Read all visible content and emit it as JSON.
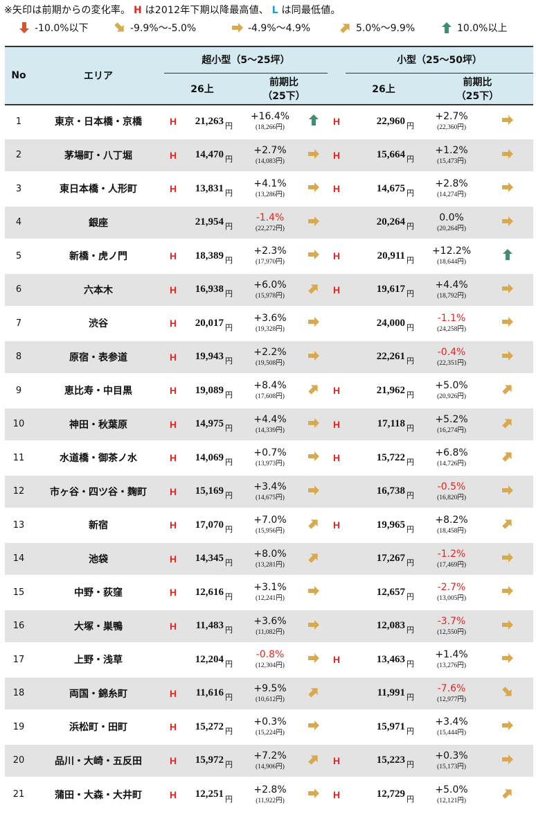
{
  "note": {
    "prefix": "※矢印は前期からの変化率。",
    "h_mark": "H",
    "h_text": "は2012年下期以降最高値、",
    "l_mark": "L",
    "l_text": "は同最低値。"
  },
  "legend": [
    {
      "icon": "down",
      "label": "-10.0%以下"
    },
    {
      "icon": "down-right",
      "label": "-9.9%〜-5.0%"
    },
    {
      "icon": "right",
      "label": "-4.9%〜4.9%"
    },
    {
      "icon": "up-right",
      "label": "5.0%〜9.9%"
    },
    {
      "icon": "up",
      "label": "10.0%以上"
    }
  ],
  "colors": {
    "header_bg": "#d4e9f0",
    "stripe": "#e3e3e3",
    "high_mark": "#e52420",
    "negative": "#e52420",
    "arrow_gold": "#d9a94f",
    "arrow_green": "#3f8f6e",
    "arrow_red": "#d9532a"
  },
  "header": {
    "no": "No",
    "area": "エリア",
    "group1": "超小型（5〜25坪）",
    "group2": "小型（25〜50坪）",
    "period": "26上",
    "change": "前期比",
    "change_sub": "（25下）"
  },
  "unit": "円",
  "rows": [
    {
      "no": "1",
      "area": "東京・日本橋・京橋",
      "s_h": "H",
      "s_val": "21,263",
      "s_pct": "+16.4%",
      "s_prev": "(18,266円)",
      "s_icon": "up",
      "m_h": "H",
      "m_val": "22,960",
      "m_pct": "+2.7%",
      "m_prev": "(22,360円)",
      "m_icon": "right"
    },
    {
      "no": "2",
      "area": "茅場町・八丁堀",
      "s_h": "H",
      "s_val": "14,470",
      "s_pct": "+2.7%",
      "s_prev": "(14,083円)",
      "s_icon": "right",
      "m_h": "H",
      "m_val": "15,664",
      "m_pct": "+1.2%",
      "m_prev": "(15,473円)",
      "m_icon": "right"
    },
    {
      "no": "3",
      "area": "東日本橋・人形町",
      "s_h": "H",
      "s_val": "13,831",
      "s_pct": "+4.1%",
      "s_prev": "(13,286円)",
      "s_icon": "right",
      "m_h": "H",
      "m_val": "14,675",
      "m_pct": "+2.8%",
      "m_prev": "(14,274円)",
      "m_icon": "right"
    },
    {
      "no": "4",
      "area": "銀座",
      "s_h": "",
      "s_val": "21,954",
      "s_pct": "-1.4%",
      "s_prev": "(22,272円)",
      "s_icon": "right",
      "m_h": "",
      "m_val": "20,264",
      "m_pct": "0.0%",
      "m_prev": "(20,264円)",
      "m_icon": "right"
    },
    {
      "no": "5",
      "area": "新橋・虎ノ門",
      "s_h": "H",
      "s_val": "18,389",
      "s_pct": "+2.3%",
      "s_prev": "(17,970円)",
      "s_icon": "right",
      "m_h": "H",
      "m_val": "20,911",
      "m_pct": "+12.2%",
      "m_prev": "(18,644円)",
      "m_icon": "up"
    },
    {
      "no": "6",
      "area": "六本木",
      "s_h": "H",
      "s_val": "16,938",
      "s_pct": "+6.0%",
      "s_prev": "(15,978円)",
      "s_icon": "up-right",
      "m_h": "H",
      "m_val": "19,617",
      "m_pct": "+4.4%",
      "m_prev": "(18,792円)",
      "m_icon": "right"
    },
    {
      "no": "7",
      "area": "渋谷",
      "s_h": "H",
      "s_val": "20,017",
      "s_pct": "+3.6%",
      "s_prev": "(19,328円)",
      "s_icon": "right",
      "m_h": "",
      "m_val": "24,000",
      "m_pct": "-1.1%",
      "m_prev": "(24,258円)",
      "m_icon": "right"
    },
    {
      "no": "8",
      "area": "原宿・表参道",
      "s_h": "H",
      "s_val": "19,943",
      "s_pct": "+2.2%",
      "s_prev": "(19,508円)",
      "s_icon": "right",
      "m_h": "",
      "m_val": "22,261",
      "m_pct": "-0.4%",
      "m_prev": "(22,351円)",
      "m_icon": "right"
    },
    {
      "no": "9",
      "area": "恵比寿・中目黒",
      "s_h": "H",
      "s_val": "19,089",
      "s_pct": "+8.4%",
      "s_prev": "(17,608円)",
      "s_icon": "up-right",
      "m_h": "H",
      "m_val": "21,962",
      "m_pct": "+5.0%",
      "m_prev": "(20,926円)",
      "m_icon": "up-right"
    },
    {
      "no": "10",
      "area": "神田・秋葉原",
      "s_h": "H",
      "s_val": "14,975",
      "s_pct": "+4.4%",
      "s_prev": "(14,339円)",
      "s_icon": "right",
      "m_h": "H",
      "m_val": "17,118",
      "m_pct": "+5.2%",
      "m_prev": "(16,274円)",
      "m_icon": "up-right"
    },
    {
      "no": "11",
      "area": "水道橋・御茶ノ水",
      "s_h": "H",
      "s_val": "14,069",
      "s_pct": "+0.7%",
      "s_prev": "(13,973円)",
      "s_icon": "right",
      "m_h": "H",
      "m_val": "15,722",
      "m_pct": "+6.8%",
      "m_prev": "(14,726円)",
      "m_icon": "up-right"
    },
    {
      "no": "12",
      "area": "市ヶ谷・四ツ谷・麹町",
      "s_h": "H",
      "s_val": "15,169",
      "s_pct": "+3.4%",
      "s_prev": "(14,675円)",
      "s_icon": "right",
      "m_h": "",
      "m_val": "16,738",
      "m_pct": "-0.5%",
      "m_prev": "(16,820円)",
      "m_icon": "right"
    },
    {
      "no": "13",
      "area": "新宿",
      "s_h": "H",
      "s_val": "17,070",
      "s_pct": "+7.0%",
      "s_prev": "(15,956円)",
      "s_icon": "up-right",
      "m_h": "H",
      "m_val": "19,965",
      "m_pct": "+8.2%",
      "m_prev": "(18,458円)",
      "m_icon": "up-right"
    },
    {
      "no": "14",
      "area": "池袋",
      "s_h": "H",
      "s_val": "14,345",
      "s_pct": "+8.0%",
      "s_prev": "(13,281円)",
      "s_icon": "up-right",
      "m_h": "",
      "m_val": "17,267",
      "m_pct": "-1.2%",
      "m_prev": "(17,469円)",
      "m_icon": "right"
    },
    {
      "no": "15",
      "area": "中野・荻窪",
      "s_h": "H",
      "s_val": "12,616",
      "s_pct": "+3.1%",
      "s_prev": "(12,241円)",
      "s_icon": "right",
      "m_h": "",
      "m_val": "12,657",
      "m_pct": "-2.7%",
      "m_prev": "(13,005円)",
      "m_icon": "right"
    },
    {
      "no": "16",
      "area": "大塚・巣鴨",
      "s_h": "H",
      "s_val": "11,483",
      "s_pct": "+3.6%",
      "s_prev": "(11,082円)",
      "s_icon": "right",
      "m_h": "",
      "m_val": "12,083",
      "m_pct": "-3.7%",
      "m_prev": "(12,550円)",
      "m_icon": "right"
    },
    {
      "no": "17",
      "area": "上野・浅草",
      "s_h": "",
      "s_val": "12,204",
      "s_pct": "-0.8%",
      "s_prev": "(12,304円)",
      "s_icon": "right",
      "m_h": "H",
      "m_val": "13,463",
      "m_pct": "+1.4%",
      "m_prev": "(13,276円)",
      "m_icon": "right"
    },
    {
      "no": "18",
      "area": "両国・錦糸町",
      "s_h": "H",
      "s_val": "11,616",
      "s_pct": "+9.5%",
      "s_prev": "(10,612円)",
      "s_icon": "up-right",
      "m_h": "",
      "m_val": "11,991",
      "m_pct": "-7.6%",
      "m_prev": "(12,977円)",
      "m_icon": "down-right"
    },
    {
      "no": "19",
      "area": "浜松町・田町",
      "s_h": "H",
      "s_val": "15,272",
      "s_pct": "+0.3%",
      "s_prev": "(15,224円)",
      "s_icon": "right",
      "m_h": "",
      "m_val": "15,971",
      "m_pct": "+3.4%",
      "m_prev": "(15,444円)",
      "m_icon": "right"
    },
    {
      "no": "20",
      "area": "品川・大崎・五反田",
      "s_h": "H",
      "s_val": "15,972",
      "s_pct": "+7.2%",
      "s_prev": "(14,906円)",
      "s_icon": "up-right",
      "m_h": "H",
      "m_val": "15,223",
      "m_pct": "+0.3%",
      "m_prev": "(15,173円)",
      "m_icon": "right"
    },
    {
      "no": "21",
      "area": "蒲田・大森・大井町",
      "s_h": "H",
      "s_val": "12,251",
      "s_pct": "+2.8%",
      "s_prev": "(11,922円)",
      "s_icon": "right",
      "m_h": "H",
      "m_val": "12,729",
      "m_pct": "+5.0%",
      "m_prev": "(12,121円)",
      "m_icon": "up-right"
    }
  ]
}
